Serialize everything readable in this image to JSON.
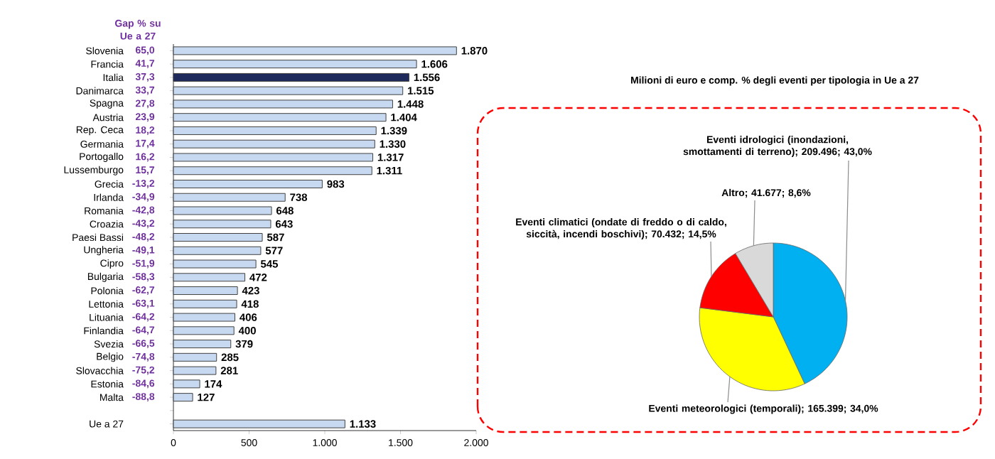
{
  "chart_data": [
    {
      "type": "bar",
      "orientation": "horizontal",
      "categories": [
        "Slovenia",
        "Francia",
        "Italia",
        "Danimarca",
        "Spagna",
        "Austria",
        "Rep. Ceca",
        "Germania",
        "Portogallo",
        "Lussemburgo",
        "Grecia",
        "Irlanda",
        "Romania",
        "Croazia",
        "Paesi Bassi",
        "Ungheria",
        "Cipro",
        "Bulgaria",
        "Polonia",
        "Lettonia",
        "Lituania",
        "Finlandia",
        "Svezia",
        "Belgio",
        "Slovacchia",
        "Estonia",
        "Malta",
        null,
        "Ue a 27"
      ],
      "values": [
        1870,
        1606,
        1556,
        1515,
        1448,
        1404,
        1339,
        1330,
        1317,
        1311,
        983,
        738,
        648,
        643,
        587,
        577,
        545,
        472,
        423,
        418,
        406,
        400,
        379,
        285,
        281,
        174,
        127,
        null,
        1133
      ],
      "colors": [
        "#c6d9f1",
        "#c6d9f1",
        "#1f2a5c",
        "#c6d9f1",
        "#c6d9f1",
        "#c6d9f1",
        "#c6d9f1",
        "#c6d9f1",
        "#c6d9f1",
        "#c6d9f1",
        "#c6d9f1",
        "#c6d9f1",
        "#c6d9f1",
        "#c6d9f1",
        "#c6d9f1",
        "#c6d9f1",
        "#c6d9f1",
        "#c6d9f1",
        "#c6d9f1",
        "#c6d9f1",
        "#c6d9f1",
        "#c6d9f1",
        "#c6d9f1",
        "#c6d9f1",
        "#c6d9f1",
        "#c6d9f1",
        "#c6d9f1",
        null,
        "#c6d9f1"
      ],
      "value_labels": [
        "1.870",
        "1.606",
        "1.556",
        "1.515",
        "1.448",
        "1.404",
        "1.339",
        "1.330",
        "1.317",
        "1.311",
        "983",
        "738",
        "648",
        "643",
        "587",
        "577",
        "545",
        "472",
        "423",
        "418",
        "406",
        "400",
        "379",
        "285",
        "281",
        "174",
        "127",
        null,
        "1.133"
      ],
      "xlim": [
        0,
        2000
      ],
      "xticks": [
        0,
        500,
        {
          "value": 1000,
          "label": "1.000"
        },
        {
          "value": 1500,
          "label": "1.500"
        },
        {
          "value": 2000,
          "label": "2.000"
        }
      ],
      "annotations": [
        "Gap % su Ue a 27",
        "65,0",
        "41,7",
        "37,3",
        "33,7",
        "27,8",
        "23,9",
        "18,2",
        "17,4",
        "16,2",
        "15,7",
        "-13,2",
        "-34,9",
        "-42,8",
        "-43,2",
        "-48,2",
        "-49,1",
        "-51,9",
        "-58,3",
        "-62,7",
        "-63,1",
        "-64,2",
        "-64,7",
        "-66,5",
        "-74,8",
        "-75,2",
        "-84,6",
        "-88,8"
      ]
    },
    {
      "type": "pie",
      "title": "Milioni di euro e comp. % degli eventi per tipologia in Ue a 27",
      "categories": [
        "Eventi idrologici (inondazioni, smottamenti di terreno); 209.496; 43,0%",
        "Eventi meteorologici (temporali); 165.399; 34,0%",
        "Eventi climatici (ondate di freddo o di caldo, siccità, incendi boschivi); 70.432; 14,5%",
        "Altro; 41.677; 8,6%"
      ],
      "values": [
        209496,
        165399,
        70432,
        41677
      ],
      "colors": [
        "#00b0f0",
        "#ffff00",
        "#ff0000",
        "#d9d9d9"
      ]
    }
  ]
}
